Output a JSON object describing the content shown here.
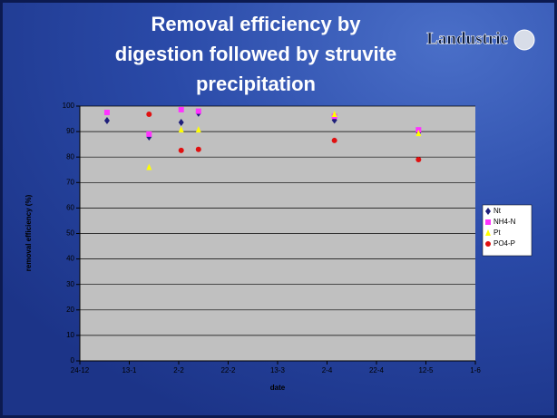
{
  "logo": "Landustrie",
  "chart_data": {
    "type": "scatter",
    "title": "Removal efficiency by digestion followed by struvite precipitation",
    "x_label": "date",
    "y_label": "removal efficiency (%)",
    "x": [
      11,
      28,
      41,
      48,
      103,
      137
    ],
    "xlim": [
      0,
      160
    ],
    "xticks": [
      {
        "value": 0,
        "label": "24-12"
      },
      {
        "value": 20,
        "label": "13-1"
      },
      {
        "value": 40,
        "label": "2-2"
      },
      {
        "value": 60,
        "label": "22-2"
      },
      {
        "value": 80,
        "label": "13-3"
      },
      {
        "value": 100,
        "label": "2-4"
      },
      {
        "value": 120,
        "label": "22-4"
      },
      {
        "value": 140,
        "label": "12-5"
      },
      {
        "value": 160,
        "label": "1-6"
      }
    ],
    "ylim": [
      0,
      100
    ],
    "yticks": [
      0,
      10,
      20,
      30,
      40,
      50,
      60,
      70,
      80,
      90,
      100
    ],
    "grid": true,
    "legend": "right",
    "series": [
      {
        "name": "Nt",
        "color": "#1f1f7a",
        "marker": "diamond",
        "values": [
          94.3,
          87.9,
          93.6,
          97.2,
          94.5,
          89.7
        ]
      },
      {
        "name": "NH4-N",
        "color": "#ff33ff",
        "marker": "square",
        "values": [
          97.5,
          89,
          98.6,
          98,
          96,
          90.7
        ]
      },
      {
        "name": "Pt",
        "color": "#ffff00",
        "marker": "triangle",
        "values": [
          null,
          76,
          90.7,
          90.7,
          96.8,
          89.3
        ]
      },
      {
        "name": "PO4-P",
        "color": "#e01010",
        "marker": "circle",
        "values": [
          null,
          96.8,
          82.6,
          83,
          86.5,
          79
        ]
      }
    ]
  }
}
